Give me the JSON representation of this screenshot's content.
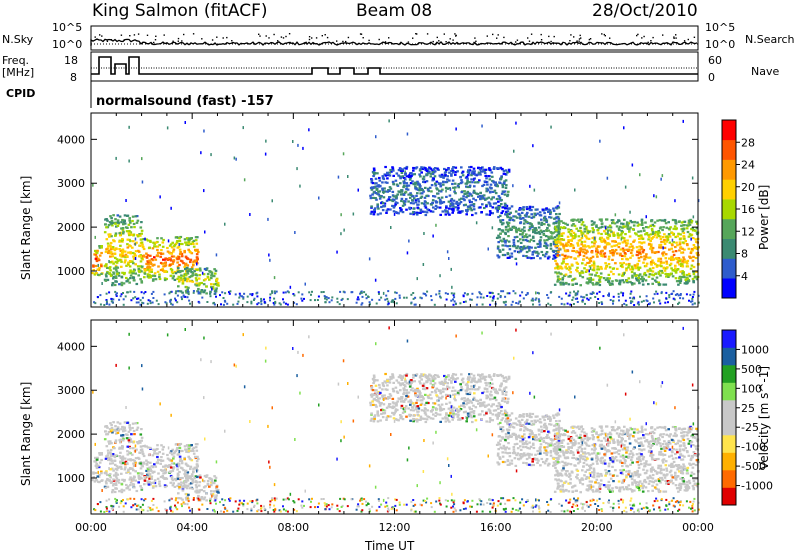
{
  "header": {
    "title": "King Salmon (fitACF)",
    "beam": "Beam 08",
    "date": "28/Oct/2010"
  },
  "left_labels": {
    "nsky": "N.Sky",
    "freq": "Freq.",
    "freq_unit": "[MHz]",
    "cpid": "CPID"
  },
  "right_labels": {
    "nsearch": "N.Search",
    "nave": "Nave"
  },
  "nsky_ticks": [
    "10^5",
    "10^0"
  ],
  "nsearch_ticks": [
    "10^5",
    "10^0"
  ],
  "freq_ticks": [
    "18",
    "8"
  ],
  "nave_ticks": [
    "60",
    "0"
  ],
  "program": "normalsound (fast) -157",
  "colors": {
    "power_scale": [
      "#0000ff",
      "#2e5ccc",
      "#3b8a72",
      "#56a65a",
      "#a8d800",
      "#ffd000",
      "#ff9900",
      "#ff5500",
      "#ff0000"
    ],
    "velocity_scale": [
      "#e00000",
      "#ff6a00",
      "#ffb000",
      "#ffe44d",
      "#c8c8c8",
      "#c8c8c8",
      "#7fe04f",
      "#22a022",
      "#1a5fa0",
      "#1a1aff"
    ]
  },
  "chart_data": [
    {
      "type": "heatmap",
      "title": "Power",
      "xlabel": "",
      "ylabel": "Slant Range [km]",
      "xlim": [
        "00:00",
        "24:00"
      ],
      "ylim": [
        180,
        4600
      ],
      "yticks": [
        1000,
        2000,
        3000,
        4000
      ],
      "xticks": [
        "00:00",
        "04:00",
        "08:00",
        "12:00",
        "16:00",
        "20:00",
        "00:00"
      ],
      "colorbar": {
        "label": "Power [dB]",
        "ticks": [
          "4",
          "8",
          "12",
          "16",
          "20",
          "24",
          "28"
        ],
        "range": [
          0,
          30
        ]
      },
      "regions": [
        {
          "t": [
            0.0,
            0.4
          ],
          "range": [
            900,
            1600
          ],
          "power": 22
        },
        {
          "t": [
            0.5,
            2.0
          ],
          "range": [
            700,
            2300
          ],
          "power": 16
        },
        {
          "t": [
            2.0,
            4.2
          ],
          "range": [
            800,
            1800
          ],
          "power": 20
        },
        {
          "t": [
            3.3,
            5.0
          ],
          "range": [
            500,
            1100
          ],
          "power": 14
        },
        {
          "t": [
            11.0,
            16.5
          ],
          "range": [
            2300,
            3400
          ],
          "power": 6
        },
        {
          "t": [
            16.0,
            18.5
          ],
          "range": [
            1300,
            2500
          ],
          "power": 8
        },
        {
          "t": [
            18.3,
            24.0
          ],
          "range": [
            700,
            2200
          ],
          "power": 18
        }
      ]
    },
    {
      "type": "heatmap",
      "title": "Velocity",
      "xlabel": "Time UT",
      "ylabel": "Slant Range [km]",
      "xlim": [
        "00:00",
        "24:00"
      ],
      "ylim": [
        180,
        4600
      ],
      "yticks": [
        1000,
        2000,
        3000,
        4000
      ],
      "xticks": [
        "00:00",
        "04:00",
        "08:00",
        "12:00",
        "16:00",
        "20:00",
        "00:00"
      ],
      "colorbar": {
        "label": "Velocity [m s^-1]",
        "ticks": [
          "1000",
          "500",
          "100",
          "25",
          "-25",
          "-100",
          "-500",
          "-1000"
        ],
        "range": [
          -1000,
          1000
        ]
      }
    }
  ]
}
